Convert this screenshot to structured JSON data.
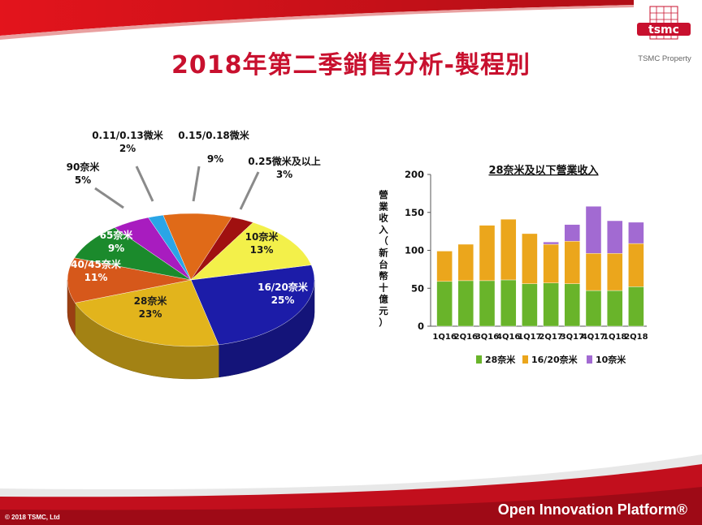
{
  "slide": {
    "title": "2018年第二季銷售分析-製程別",
    "logo_text": "tsmc",
    "logo_caption": "TSMC Property",
    "footer_copyright": "© 2018 TSMC, Ltd",
    "footer_platform": "Open Innovation Platform®",
    "colors": {
      "brand_red": "#c8102e",
      "band_red": "#b3091f"
    }
  },
  "chart_data": [
    {
      "type": "pie",
      "title": "",
      "slices": [
        {
          "label": "16/20奈米",
          "value_label": "25%",
          "value": 25,
          "color": "#1c1ca8"
        },
        {
          "label": "28奈米",
          "value_label": "23%",
          "value": 23,
          "color": "#e2b41c"
        },
        {
          "label": "40/45奈米",
          "value_label": "11%",
          "value": 11,
          "color": "#d6581b"
        },
        {
          "label": "65奈米",
          "value_label": "9%",
          "value": 9,
          "color": "#1b8a2c"
        },
        {
          "label": "90奈米",
          "value_label": "5%",
          "value": 5,
          "color": "#a81cbf"
        },
        {
          "label": "0.11/0.13微米",
          "value_label": "2%",
          "value": 2,
          "color": "#2aa5e6"
        },
        {
          "label": "0.15/0.18微米",
          "value_label": "9%",
          "value": 9,
          "color": "#e06a18"
        },
        {
          "label": "0.25微米及以上",
          "value_label": "3%",
          "value": 3,
          "color": "#a01010"
        },
        {
          "label": "10奈米",
          "value_label": "13%",
          "value": 13,
          "color": "#f3f04a"
        }
      ]
    },
    {
      "type": "bar",
      "stacked": true,
      "title": "28奈米及以下營業收入",
      "ylabel": "營業收入（新台幣十億元）",
      "ylim": [
        0,
        200
      ],
      "yticks": [
        0,
        50,
        100,
        150,
        200
      ],
      "categories": [
        "1Q16",
        "2Q16",
        "3Q16",
        "4Q16",
        "1Q17",
        "2Q17",
        "3Q17",
        "4Q17",
        "1Q18",
        "2Q18"
      ],
      "series": [
        {
          "name": "28奈米",
          "color": "#69b42a",
          "values": [
            59,
            60,
            60,
            61,
            56,
            57,
            56,
            47,
            47,
            52
          ]
        },
        {
          "name": "16/20奈米",
          "color": "#eba61c",
          "values": [
            40,
            48,
            73,
            80,
            66,
            51,
            56,
            49,
            49,
            57
          ]
        },
        {
          "name": "10奈米",
          "color": "#a26ad2",
          "values": [
            0,
            0,
            0,
            0,
            0,
            3,
            22,
            62,
            43,
            28
          ]
        }
      ],
      "legend": "bottom"
    }
  ]
}
